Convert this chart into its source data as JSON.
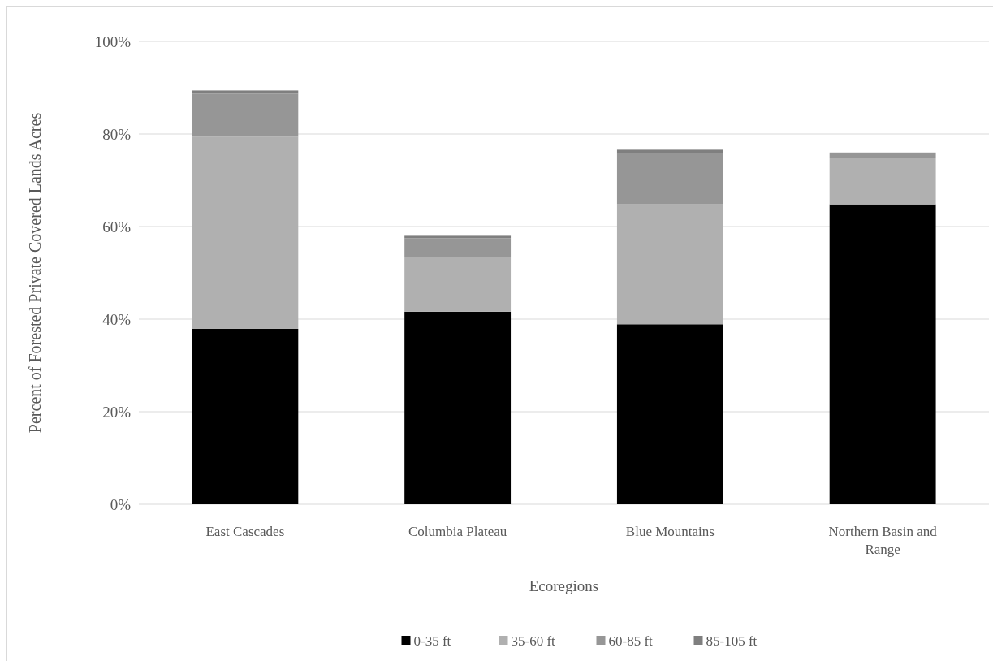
{
  "chart_data": {
    "type": "bar",
    "stacked": true,
    "xlabel": "Ecoregions",
    "ylabel": "Percent of Forested Private Covered Lands Acres",
    "categories": [
      "East Cascades",
      "Columbia Plateau",
      "Blue Mountains",
      "Northern Basin and Range"
    ],
    "series": [
      {
        "name": "0-35 ft",
        "color": "#000000",
        "values": [
          37.9,
          41.6,
          38.9,
          64.8
        ]
      },
      {
        "name": "35-60 ft",
        "color": "#b0b0b0",
        "values": [
          41.5,
          11.9,
          25.9,
          10.1
        ]
      },
      {
        "name": "60-85 ft",
        "color": "#969696",
        "values": [
          9.3,
          4.0,
          11.0,
          1.1
        ]
      },
      {
        "name": "85-105 ft",
        "color": "#7f7f7f",
        "values": [
          0.7,
          0.5,
          0.8,
          0
        ]
      }
    ],
    "ylim": [
      0,
      100
    ],
    "yticks": [
      {
        "value": 0,
        "label": "0%"
      },
      {
        "value": 20,
        "label": "20%"
      },
      {
        "value": 40,
        "label": "40%"
      },
      {
        "value": 60,
        "label": "60%"
      },
      {
        "value": 80,
        "label": "80%"
      },
      {
        "value": 100,
        "label": "100%"
      }
    ],
    "grid": "y",
    "legend": "bottom"
  }
}
